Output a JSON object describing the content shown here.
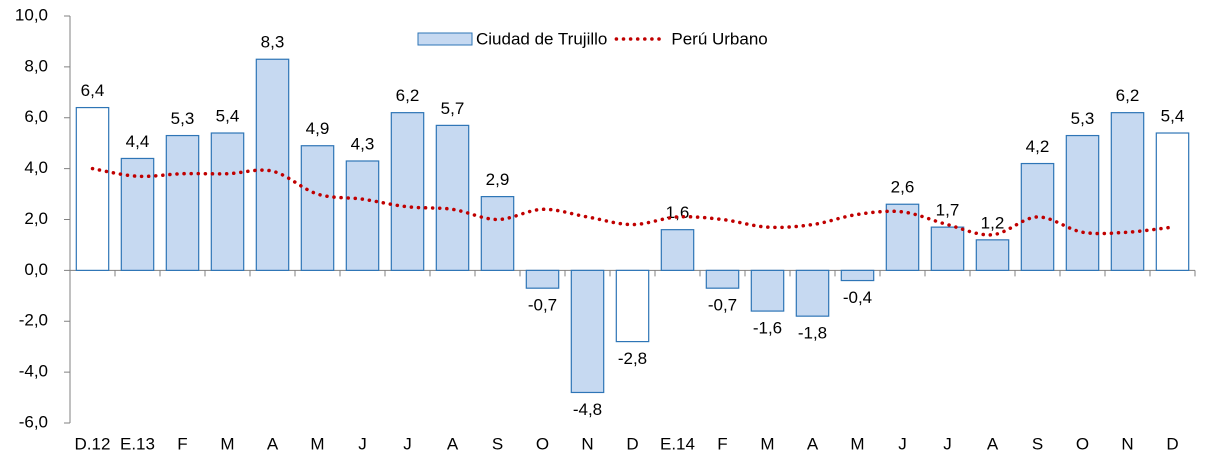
{
  "chart_data": {
    "type": "bar",
    "categories": [
      "D.12",
      "E.13",
      "F",
      "M",
      "A",
      "M",
      "J",
      "J",
      "A",
      "S",
      "O",
      "N",
      "D",
      "E.14",
      "F",
      "M",
      "A",
      "M",
      "J",
      "J",
      "A",
      "S",
      "O",
      "N",
      "D"
    ],
    "series": [
      {
        "name": "Ciudad de Trujillo",
        "type": "bar",
        "color": "#c6d9f1",
        "edgecolor": "#2e75b6",
        "colors": [
          "#ffffff",
          "#c6d9f1",
          "#c6d9f1",
          "#c6d9f1",
          "#c6d9f1",
          "#c6d9f1",
          "#c6d9f1",
          "#c6d9f1",
          "#c6d9f1",
          "#c6d9f1",
          "#c6d9f1",
          "#c6d9f1",
          "#ffffff",
          "#c6d9f1",
          "#c6d9f1",
          "#c6d9f1",
          "#c6d9f1",
          "#c6d9f1",
          "#c6d9f1",
          "#c6d9f1",
          "#c6d9f1",
          "#c6d9f1",
          "#c6d9f1",
          "#c6d9f1",
          "#ffffff"
        ],
        "values": [
          6.4,
          4.4,
          5.3,
          5.4,
          8.3,
          4.9,
          4.3,
          6.2,
          5.7,
          2.9,
          -0.7,
          -4.8,
          -2.8,
          1.6,
          -0.7,
          -1.6,
          -1.8,
          -0.4,
          2.6,
          1.7,
          1.2,
          4.2,
          5.3,
          6.2,
          5.4
        ],
        "value_labels": [
          "6,4",
          "4,4",
          "5,3",
          "5,4",
          "8,3",
          "4,9",
          "4,3",
          "6,2",
          "5,7",
          "2,9",
          "-0,7",
          "-4,8",
          "-2,8",
          "1,6",
          "-0,7",
          "-1,6",
          "-1,8",
          "-0,4",
          "2,6",
          "1,7",
          "1,2",
          "4,2",
          "5,3",
          "6,2",
          "5,4"
        ]
      },
      {
        "name": "Perú Urbano",
        "type": "line",
        "color": "#c00000",
        "values": [
          4.0,
          3.7,
          3.8,
          3.8,
          3.9,
          3.0,
          2.8,
          2.5,
          2.4,
          2.0,
          2.4,
          2.1,
          1.8,
          2.1,
          2.0,
          1.7,
          1.8,
          2.2,
          2.3,
          1.8,
          1.4,
          2.1,
          1.5,
          1.5,
          1.7
        ]
      }
    ],
    "ylim": [
      -6,
      10
    ],
    "yticks": [
      {
        "value": -6,
        "label": "-6,0"
      },
      {
        "value": -4,
        "label": "-4,0"
      },
      {
        "value": -2,
        "label": "-2,0"
      },
      {
        "value": 0,
        "label": "0,0"
      },
      {
        "value": 2,
        "label": "2,0"
      },
      {
        "value": 4,
        "label": "4,0"
      },
      {
        "value": 6,
        "label": "6,0"
      },
      {
        "value": 8,
        "label": "8,0"
      },
      {
        "value": 10,
        "label": "10,0"
      }
    ],
    "legend": "top"
  }
}
